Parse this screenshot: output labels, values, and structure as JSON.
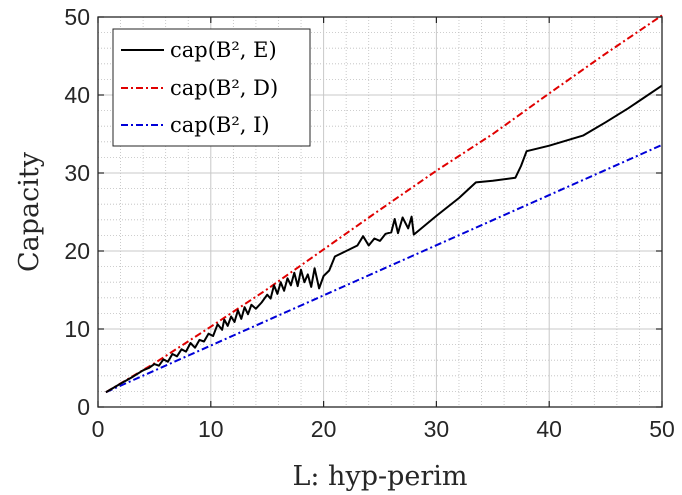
{
  "chart_data": {
    "type": "line",
    "xlabel": "L: hyp-perim",
    "ylabel": "Capacity",
    "xlim": [
      0,
      50
    ],
    "ylim": [
      0,
      50
    ],
    "xticks": [
      "0",
      "10",
      "20",
      "30",
      "40",
      "50"
    ],
    "yticks": [
      "0",
      "10",
      "20",
      "30",
      "40",
      "50"
    ],
    "grid": "major and minor (dotted)",
    "legend_position": "top-left",
    "series": [
      {
        "name": "cap(B², E)",
        "color": "#000000",
        "style": "solid",
        "x": [
          0.7,
          2,
          3,
          4,
          4.5,
          5,
          5.4,
          5.8,
          6.2,
          6.6,
          7,
          7.4,
          7.8,
          8.2,
          8.6,
          9,
          9.4,
          9.8,
          10.2,
          10.6,
          11,
          11.2,
          11.5,
          11.8,
          12.1,
          12.4,
          12.7,
          13,
          13.3,
          13.6,
          14,
          14.5,
          15,
          15.3,
          15.6,
          15.9,
          16.2,
          16.5,
          16.8,
          17.1,
          17.4,
          17.7,
          18,
          18.3,
          18.6,
          18.9,
          19.2,
          19.6,
          20,
          20.5,
          21,
          22,
          23,
          23.5,
          24,
          24.5,
          25,
          25.5,
          26,
          26.3,
          26.6,
          27,
          27.5,
          27.8,
          28,
          30,
          32,
          33.5,
          35,
          37,
          37.5,
          38,
          40,
          43,
          45,
          47,
          50
        ],
        "values": [
          1.9,
          3.0,
          3.8,
          4.7,
          5.0,
          5.5,
          5.3,
          6.1,
          5.8,
          6.8,
          6.5,
          7.4,
          7.1,
          8.2,
          7.6,
          8.6,
          8.4,
          9.4,
          9.1,
          10.6,
          9.9,
          11.2,
          10.4,
          11.6,
          10.9,
          12.4,
          11.3,
          12.8,
          11.9,
          13.1,
          12.6,
          13.4,
          14.4,
          13.9,
          15.6,
          14.5,
          16.0,
          14.9,
          16.5,
          15.6,
          17.2,
          15.5,
          17.6,
          16.0,
          17.0,
          15.4,
          17.8,
          15.2,
          16.8,
          17.5,
          19.3,
          20.0,
          20.7,
          21.9,
          20.7,
          21.6,
          21.3,
          22.2,
          22.4,
          24.1,
          22.3,
          24.3,
          22.9,
          24.4,
          22.1,
          24.5,
          26.8,
          28.8,
          29.0,
          29.4,
          30.9,
          32.8,
          33.5,
          34.8,
          36.5,
          38.3,
          41.2
        ]
      },
      {
        "name": "cap(B², D)",
        "color": "#e00000",
        "style": "dash-dot",
        "x": [
          0.7,
          5,
          10,
          15,
          20,
          25,
          30,
          35,
          40,
          45,
          50
        ],
        "values": [
          1.9,
          5.6,
          10.3,
          15.1,
          20.2,
          25.3,
          30.3,
          35.0,
          40.2,
          45.3,
          50.2
        ]
      },
      {
        "name": "cap(B², I)",
        "color": "#0000d8",
        "style": "dash-dot",
        "x": [
          0.7,
          50
        ],
        "values": [
          1.9,
          33.6
        ]
      }
    ]
  },
  "legend": {
    "e_label": "cap(B², E)",
    "d_label": "cap(B², D)",
    "i_label": "cap(B², I)"
  }
}
